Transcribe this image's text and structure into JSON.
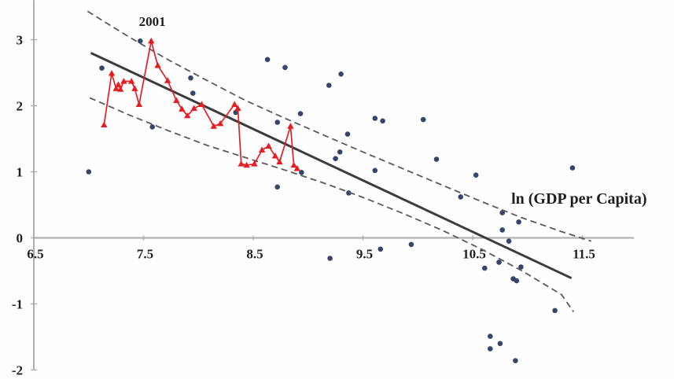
{
  "chart_data": {
    "type": "scatter",
    "title": "",
    "xlabel": "ln (GDP per Capita)",
    "ylabel": "",
    "grid": false,
    "legend": "none",
    "xlim": [
      6.5,
      11.97
    ],
    "ylim": [
      -2.0,
      3.6
    ],
    "x_axis_y_position": 0,
    "x_ticks": [
      {
        "v": 6.5,
        "label": "6.5"
      },
      {
        "v": 7.5,
        "label": "7.5"
      },
      {
        "v": 8.5,
        "label": "8.5"
      },
      {
        "v": 9.5,
        "label": "9.5"
      },
      {
        "v": 10.5,
        "label": "10.5"
      },
      {
        "v": 11.5,
        "label": "11.5"
      }
    ],
    "y_ticks": [
      {
        "v": 3,
        "label": "3"
      },
      {
        "v": 2,
        "label": "2"
      },
      {
        "v": 1,
        "label": "1"
      },
      {
        "v": 0,
        "label": "0"
      },
      {
        "v": -1,
        "label": "-1"
      },
      {
        "v": -2,
        "label": "-2"
      }
    ],
    "annotations": {
      "year_label": "2001",
      "year_label_at": [
        7.58,
        3.21
      ],
      "axis_label": "ln (GDP per Capita)",
      "axis_label_at": [
        11.47,
        0.52
      ]
    },
    "colors": {
      "scatter": "#36456b",
      "time_path": "#e41e25",
      "trend": "#3c3c3c",
      "band": "#5a5a5a",
      "axis_x": "#b3b3b3",
      "axis_y": "#9a9a9a",
      "tick_mark": "#aaaaaa",
      "text": "#1f1f1f"
    },
    "series": [
      {
        "name": "countries-scatter",
        "type": "scatter",
        "marker": "circle",
        "points": [
          [
            7.0,
            1.0
          ],
          [
            7.12,
            2.57
          ],
          [
            7.47,
            2.98
          ],
          [
            7.58,
            1.68
          ],
          [
            7.93,
            2.42
          ],
          [
            7.95,
            2.19
          ],
          [
            8.34,
            1.9
          ],
          [
            8.63,
            2.7
          ],
          [
            8.79,
            2.58
          ],
          [
            9.3,
            2.48
          ],
          [
            9.19,
            2.31
          ],
          [
            8.93,
            1.88
          ],
          [
            8.72,
            1.75
          ],
          [
            9.61,
            1.81
          ],
          [
            9.68,
            1.77
          ],
          [
            10.05,
            1.79
          ],
          [
            9.36,
            1.57
          ],
          [
            8.72,
            0.77
          ],
          [
            9.37,
            0.68
          ],
          [
            9.29,
            1.3
          ],
          [
            9.25,
            1.2
          ],
          [
            9.61,
            1.02
          ],
          [
            10.17,
            1.19
          ],
          [
            10.53,
            0.95
          ],
          [
            11.41,
            1.06
          ],
          [
            10.39,
            0.62
          ],
          [
            10.77,
            0.38
          ],
          [
            10.92,
            0.24
          ],
          [
            10.77,
            0.12
          ],
          [
            10.83,
            -0.05
          ],
          [
            9.66,
            -0.17
          ],
          [
            9.94,
            -0.1
          ],
          [
            9.2,
            -0.31
          ],
          [
            10.61,
            -0.46
          ],
          [
            10.74,
            -0.37
          ],
          [
            10.94,
            -0.44
          ],
          [
            10.87,
            -0.62
          ],
          [
            10.9,
            -0.65
          ],
          [
            11.25,
            -1.1
          ],
          [
            10.66,
            -1.49
          ],
          [
            10.75,
            -1.6
          ],
          [
            10.66,
            -1.68
          ],
          [
            10.89,
            -1.86
          ],
          [
            8.94,
            0.99
          ]
        ]
      },
      {
        "name": "regression-trend-line",
        "type": "line",
        "points": [
          [
            7.02,
            2.8
          ],
          [
            11.4,
            -0.61
          ]
        ]
      },
      {
        "name": "confidence-band-upper",
        "type": "dashed-line",
        "points": [
          [
            6.99,
            3.43
          ],
          [
            7.35,
            3.06
          ],
          [
            7.71,
            2.71
          ],
          [
            8.07,
            2.39
          ],
          [
            8.43,
            2.08
          ],
          [
            8.79,
            1.81
          ],
          [
            9.15,
            1.55
          ],
          [
            9.5,
            1.3
          ],
          [
            9.86,
            1.05
          ],
          [
            10.22,
            0.8
          ],
          [
            10.58,
            0.55
          ],
          [
            10.94,
            0.31
          ],
          [
            11.3,
            0.1
          ],
          [
            11.58,
            -0.05
          ]
        ]
      },
      {
        "name": "confidence-band-lower",
        "type": "dashed-line",
        "points": [
          [
            7.01,
            2.12
          ],
          [
            7.37,
            1.86
          ],
          [
            7.73,
            1.62
          ],
          [
            8.08,
            1.4
          ],
          [
            8.44,
            1.21
          ],
          [
            8.8,
            1.02
          ],
          [
            9.16,
            0.82
          ],
          [
            9.52,
            0.6
          ],
          [
            9.88,
            0.36
          ],
          [
            10.23,
            0.11
          ],
          [
            10.59,
            -0.18
          ],
          [
            10.95,
            -0.5
          ],
          [
            11.31,
            -0.86
          ],
          [
            11.42,
            -1.12
          ]
        ]
      },
      {
        "name": "time-path-2001",
        "type": "line-with-triangle-markers",
        "points": [
          [
            7.14,
            1.71
          ],
          [
            7.21,
            2.49
          ],
          [
            7.25,
            2.26
          ],
          [
            7.27,
            2.32
          ],
          [
            7.29,
            2.25
          ],
          [
            7.32,
            2.37
          ],
          [
            7.39,
            2.37
          ],
          [
            7.42,
            2.26
          ],
          [
            7.46,
            2.02
          ],
          [
            7.57,
            2.98
          ],
          [
            7.63,
            2.61
          ],
          [
            7.72,
            2.38
          ],
          [
            7.8,
            2.08
          ],
          [
            7.85,
            1.95
          ],
          [
            7.9,
            1.85
          ],
          [
            7.96,
            1.96
          ],
          [
            8.03,
            2.02
          ],
          [
            8.14,
            1.69
          ],
          [
            8.2,
            1.73
          ],
          [
            8.33,
            2.02
          ],
          [
            8.36,
            1.96
          ],
          [
            8.39,
            1.12
          ],
          [
            8.44,
            1.1
          ],
          [
            8.51,
            1.12
          ],
          [
            8.58,
            1.33
          ],
          [
            8.64,
            1.39
          ],
          [
            8.7,
            1.24
          ],
          [
            8.74,
            1.15
          ],
          [
            8.84,
            1.69
          ],
          [
            8.87,
            1.1
          ],
          [
            8.9,
            1.05
          ]
        ]
      }
    ]
  }
}
